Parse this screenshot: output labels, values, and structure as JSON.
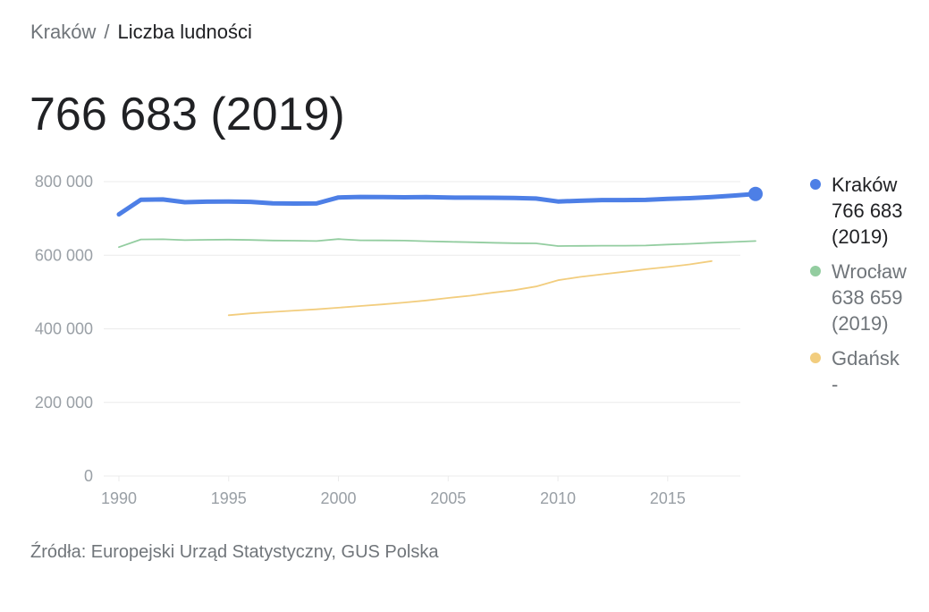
{
  "breadcrumb": {
    "parent": "Kraków",
    "separator": "/",
    "current": "Liczba ludności"
  },
  "headline": "766 683 (2019)",
  "source": "Źródła: Europejski Urząd Statystyczny, GUS Polska",
  "colors": {
    "krakow": "#4d7fe6",
    "wroclaw": "#93cda0",
    "gdansk": "#f2cd7e",
    "grid": "#ebebeb",
    "axis_text": "#9aa0a6"
  },
  "legend": [
    {
      "name": "Kraków",
      "value": "766 683",
      "year": "(2019)",
      "color": "#4d7fe6",
      "active": true
    },
    {
      "name": "Wrocław",
      "value": "638 659",
      "year": "(2019)",
      "color": "#93cda0",
      "active": false
    },
    {
      "name": "Gdańsk",
      "value": "-",
      "year": "",
      "color": "#f2cd7e",
      "active": false
    }
  ],
  "chart_data": {
    "type": "line",
    "title": "",
    "xlabel": "",
    "ylabel": "",
    "xlim": [
      1990,
      2019
    ],
    "ylim": [
      0,
      800000
    ],
    "grid": true,
    "legend_position": "right",
    "x_ticks": [
      1990,
      1995,
      2000,
      2005,
      2010,
      2015
    ],
    "x_tick_labels": [
      "1990",
      "1995",
      "2000",
      "2005",
      "2010",
      "2015"
    ],
    "y_ticks": [
      0,
      200000,
      400000,
      600000,
      800000
    ],
    "y_tick_labels": [
      "0",
      "200 000",
      "400 000",
      "600 000",
      "800 000"
    ],
    "series": [
      {
        "name": "Kraków",
        "color": "#4d7fe6",
        "highlight": true,
        "x": [
          1990,
          1991,
          1992,
          1993,
          1994,
          1995,
          1996,
          1997,
          1998,
          1999,
          2000,
          2001,
          2002,
          2003,
          2004,
          2005,
          2006,
          2007,
          2008,
          2009,
          2010,
          2011,
          2012,
          2013,
          2014,
          2015,
          2016,
          2017,
          2018,
          2019
        ],
        "values": [
          711000,
          751000,
          751500,
          744000,
          745500,
          746000,
          745000,
          741000,
          740500,
          740700,
          757000,
          758500,
          758000,
          757500,
          757900,
          756800,
          756500,
          756200,
          755600,
          754000,
          746000,
          748000,
          750000,
          750000,
          750500,
          753000,
          755000,
          758000,
          762000,
          766683
        ]
      },
      {
        "name": "Wrocław",
        "color": "#93cda0",
        "highlight": false,
        "x": [
          1990,
          1991,
          1992,
          1993,
          1994,
          1995,
          1996,
          1997,
          1998,
          1999,
          2000,
          2001,
          2002,
          2003,
          2004,
          2005,
          2006,
          2007,
          2008,
          2009,
          2010,
          2011,
          2012,
          2013,
          2014,
          2015,
          2016,
          2017,
          2018,
          2019
        ],
        "values": [
          622000,
          643000,
          643500,
          641000,
          642000,
          642500,
          641500,
          640000,
          639500,
          638500,
          644000,
          640500,
          640300,
          639800,
          638000,
          636500,
          635500,
          634000,
          632800,
          632200,
          625000,
          625500,
          626000,
          626000,
          626500,
          629000,
          631000,
          634000,
          636000,
          638659
        ]
      },
      {
        "name": "Gdańsk",
        "color": "#f2cd7e",
        "highlight": false,
        "x": [
          1995,
          1996,
          1997,
          1998,
          1999,
          2000,
          2001,
          2002,
          2003,
          2004,
          2005,
          2006,
          2007,
          2008,
          2009,
          2010,
          2011,
          2012,
          2013,
          2014,
          2015,
          2016,
          2017
        ],
        "values": [
          437000,
          442000,
          446000,
          449500,
          453000,
          457500,
          462000,
          466500,
          471500,
          477000,
          484000,
          490000,
          498000,
          505000,
          515000,
          532000,
          541000,
          548000,
          555000,
          562000,
          568000,
          575000,
          584000
        ]
      }
    ]
  }
}
